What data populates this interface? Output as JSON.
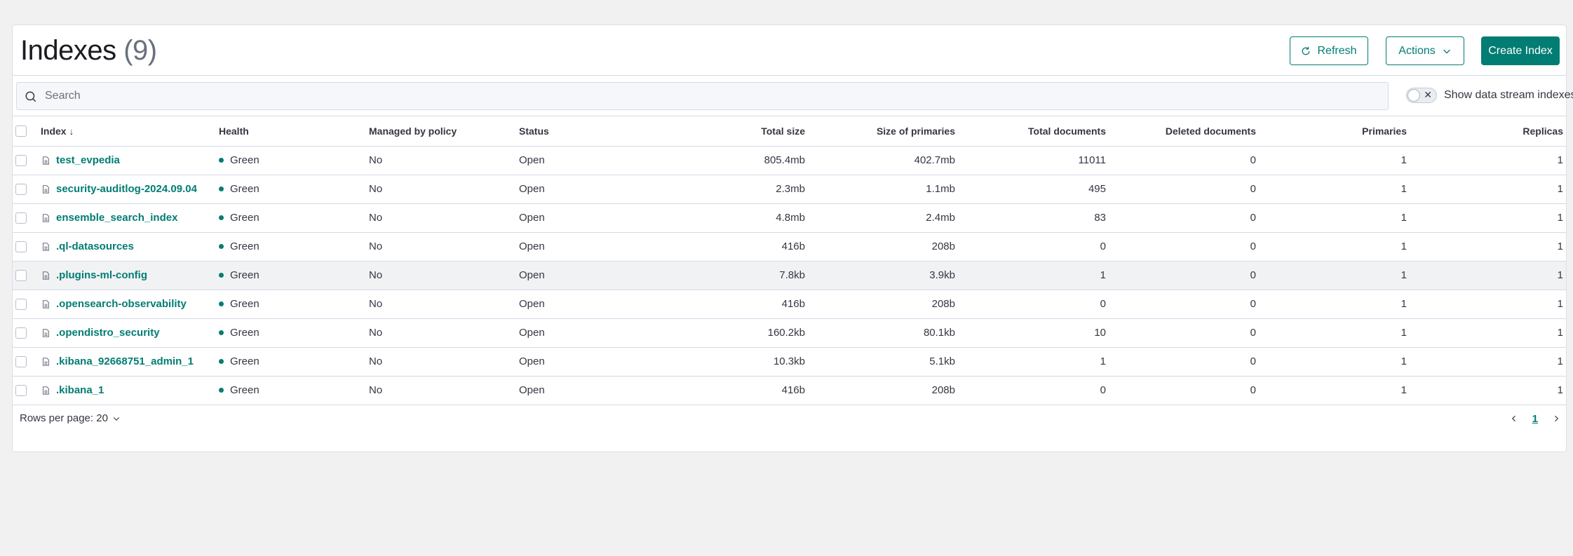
{
  "header": {
    "title": "Indexes",
    "count": "(9)",
    "refresh_label": "Refresh",
    "actions_label": "Actions",
    "create_label": "Create Index"
  },
  "search": {
    "placeholder": "Search",
    "value": ""
  },
  "toggle": {
    "label": "Show data stream indexes",
    "checked": false
  },
  "table": {
    "columns": [
      "Index",
      "Health",
      "Managed by policy",
      "Status",
      "Total size",
      "Size of primaries",
      "Total documents",
      "Deleted documents",
      "Primaries",
      "Replicas"
    ],
    "rows": [
      {
        "index": "test_evpedia",
        "health": "Green",
        "managed": "No",
        "status": "Open",
        "total_size": "805.4mb",
        "primaries_size": "402.7mb",
        "total_docs": "11011",
        "deleted_docs": "0",
        "primaries": "1",
        "replicas": "1"
      },
      {
        "index": "security-auditlog-2024.09.04",
        "health": "Green",
        "managed": "No",
        "status": "Open",
        "total_size": "2.3mb",
        "primaries_size": "1.1mb",
        "total_docs": "495",
        "deleted_docs": "0",
        "primaries": "1",
        "replicas": "1"
      },
      {
        "index": "ensemble_search_index",
        "health": "Green",
        "managed": "No",
        "status": "Open",
        "total_size": "4.8mb",
        "primaries_size": "2.4mb",
        "total_docs": "83",
        "deleted_docs": "0",
        "primaries": "1",
        "replicas": "1"
      },
      {
        "index": ".ql-datasources",
        "health": "Green",
        "managed": "No",
        "status": "Open",
        "total_size": "416b",
        "primaries_size": "208b",
        "total_docs": "0",
        "deleted_docs": "0",
        "primaries": "1",
        "replicas": "1"
      },
      {
        "index": ".plugins-ml-config",
        "health": "Green",
        "managed": "No",
        "status": "Open",
        "total_size": "7.8kb",
        "primaries_size": "3.9kb",
        "total_docs": "1",
        "deleted_docs": "0",
        "primaries": "1",
        "replicas": "1"
      },
      {
        "index": ".opensearch-observability",
        "health": "Green",
        "managed": "No",
        "status": "Open",
        "total_size": "416b",
        "primaries_size": "208b",
        "total_docs": "0",
        "deleted_docs": "0",
        "primaries": "1",
        "replicas": "1"
      },
      {
        "index": ".opendistro_security",
        "health": "Green",
        "managed": "No",
        "status": "Open",
        "total_size": "160.2kb",
        "primaries_size": "80.1kb",
        "total_docs": "10",
        "deleted_docs": "0",
        "primaries": "1",
        "replicas": "1"
      },
      {
        "index": ".kibana_92668751_admin_1",
        "health": "Green",
        "managed": "No",
        "status": "Open",
        "total_size": "10.3kb",
        "primaries_size": "5.1kb",
        "total_docs": "1",
        "deleted_docs": "0",
        "primaries": "1",
        "replicas": "1"
      },
      {
        "index": ".kibana_1",
        "health": "Green",
        "managed": "No",
        "status": "Open",
        "total_size": "416b",
        "primaries_size": "208b",
        "total_docs": "0",
        "deleted_docs": "0",
        "primaries": "1",
        "replicas": "1"
      }
    ]
  },
  "footer": {
    "rows_per_page": "Rows per page: 20",
    "current_page": "1"
  },
  "colors": {
    "accent": "#017d73",
    "health_green": "#017d73",
    "background": "#f1f1f2"
  },
  "icons": [
    "refresh-icon",
    "chevron-down-icon",
    "search-icon",
    "close-icon",
    "document-icon",
    "sort-down-icon",
    "chevron-left-icon",
    "chevron-right-icon"
  ]
}
